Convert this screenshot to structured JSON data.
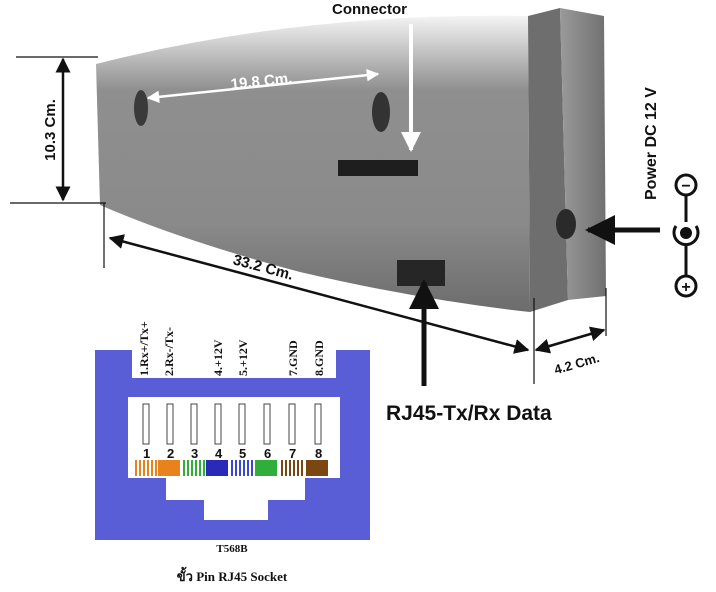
{
  "device": {
    "connector_label": "Connector",
    "width_label": "19.8 Cm.",
    "height_label": "10.3 Cm.",
    "length_label": "33.2 Cm.",
    "depth_label": "4.2 Cm.",
    "power_label": "Power DC 12 V",
    "rj45_label": "RJ45-Tx/Rx Data",
    "polarity_minus": "−",
    "polarity_plus": "+"
  },
  "rj45": {
    "standard_label": "T568B",
    "caption": "ขั้ว Pin RJ45 Socket",
    "pin_functions": [
      "1.Rx+/Tx+",
      "2.Rx-/Tx-",
      "4.+12V",
      "5.+12V",
      "7.GND",
      "8.GND"
    ],
    "pin_numbers": [
      "1",
      "2",
      "3",
      "4",
      "5",
      "6",
      "7",
      "8"
    ],
    "colors": {
      "body": "#5a5ed6",
      "pin2": "#e8821a",
      "pin4": "#2a2ab8",
      "pin6": "#2fae3a",
      "pin8": "#7a4612",
      "stripe_orange": "#e8821a",
      "stripe_green": "#2fae3a",
      "stripe_blue": "#3a46d8",
      "stripe_brown": "#7a4612"
    }
  }
}
